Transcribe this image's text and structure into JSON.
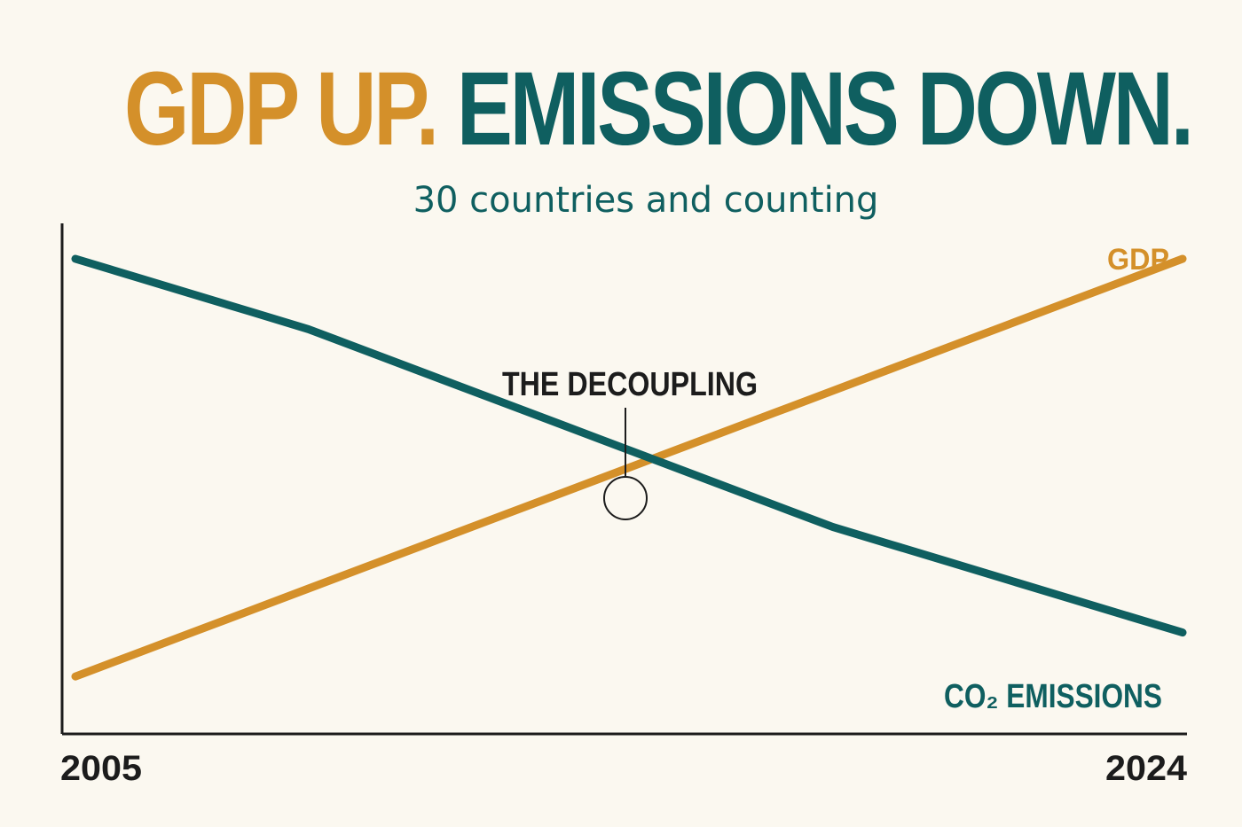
{
  "headline": {
    "part1": "GDP UP.",
    "part2": " EMISSIONS DOWN.",
    "color1": "#d4902a",
    "color2": "#0f5f60"
  },
  "subtitle": "30 countries and counting",
  "chart_data": {
    "type": "line",
    "x_start_label": "2005",
    "x_end_label": "2024",
    "annotation": "THE DECOUPLING",
    "colors": {
      "gdp": "#d4902a",
      "emissions": "#0f5f60",
      "axis": "#1c1c1c",
      "text": "#1c1c1c"
    },
    "series": [
      {
        "key": "gdp",
        "name": "GDP",
        "values": [
          5,
          10,
          15,
          20,
          25,
          30,
          35,
          40,
          45,
          50,
          55,
          60,
          65,
          70,
          75,
          80,
          85,
          90,
          95,
          100
        ]
      },
      {
        "key": "emissions",
        "name": "CO₂ EMISSIONS",
        "values": [
          100,
          96,
          92,
          88,
          84,
          79,
          74,
          69,
          64,
          59,
          54,
          49,
          44,
          39,
          35,
          31,
          27,
          23,
          19,
          15
        ]
      }
    ]
  }
}
